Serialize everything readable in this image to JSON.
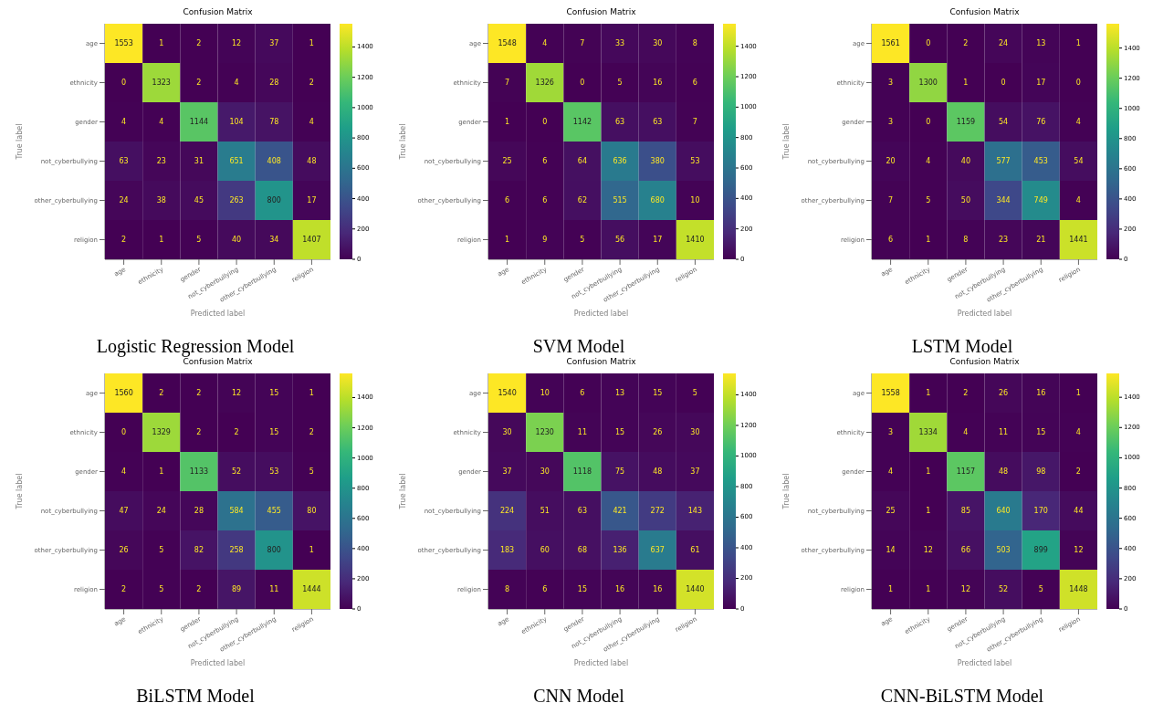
{
  "chart_data": [
    {
      "type": "heatmap",
      "title": "Confusion Matrix",
      "subtitle": "Logistic Regression Model",
      "xlabel": "Predicted label",
      "ylabel": "True label",
      "categories": [
        "age",
        "ethnicity",
        "gender",
        "not_cyberbullying",
        "other_cyberbullying",
        "religion"
      ],
      "y_categories": [
        "age",
        "ethnicity",
        "gender",
        "not_cyberbullying",
        "other_cyberbullying",
        "religion"
      ],
      "cells": [
        [
          1553,
          1,
          2,
          12,
          37,
          1
        ],
        [
          0,
          1323,
          2,
          4,
          28,
          2
        ],
        [
          4,
          4,
          1144,
          104,
          78,
          4
        ],
        [
          63,
          23,
          31,
          651,
          408,
          48
        ],
        [
          24,
          38,
          45,
          263,
          800,
          17
        ],
        [
          2,
          1,
          5,
          40,
          34,
          1407
        ]
      ],
      "clim": [
        0,
        1553
      ],
      "cticks": [
        0,
        200,
        400,
        600,
        800,
        1000,
        1200,
        1400
      ],
      "data_labels": true
    },
    {
      "type": "heatmap",
      "title": "Confusion Matrix",
      "subtitle": "SVM Model",
      "xlabel": "Predicted label",
      "ylabel": "True label",
      "categories": [
        "age",
        "ethnicity",
        "gender",
        "not_cyberbullying",
        "other_cyberbullying",
        "religion"
      ],
      "y_categories": [
        "age",
        "ethnicity",
        "gender",
        "not_cyberbullying",
        "other_cyberbullying",
        "religion"
      ],
      "cells": [
        [
          1548,
          4,
          7,
          33,
          30,
          8
        ],
        [
          7,
          1326,
          0,
          5,
          16,
          6
        ],
        [
          1,
          0,
          1142,
          63,
          63,
          7
        ],
        [
          25,
          6,
          64,
          636,
          380,
          53
        ],
        [
          6,
          6,
          62,
          515,
          680,
          10
        ],
        [
          1,
          9,
          5,
          56,
          17,
          1410
        ]
      ],
      "clim": [
        0,
        1548
      ],
      "cticks": [
        0,
        200,
        400,
        600,
        800,
        1000,
        1200,
        1400
      ],
      "data_labels": true
    },
    {
      "type": "heatmap",
      "title": "Confusion Matrix",
      "subtitle": "LSTM Model",
      "xlabel": "Predicted label",
      "ylabel": "True label",
      "categories": [
        "age",
        "ethnicity",
        "gender",
        "not_cyberbullying",
        "other_cyberbullying",
        "religion"
      ],
      "y_categories": [
        "age",
        "ethnicity",
        "gender",
        "not_cyberbullying",
        "other_cyberbullying",
        "religion"
      ],
      "cells": [
        [
          1561,
          0,
          2,
          24,
          13,
          1
        ],
        [
          3,
          1300,
          1,
          0,
          17,
          0
        ],
        [
          3,
          0,
          1159,
          54,
          76,
          4
        ],
        [
          20,
          4,
          40,
          577,
          453,
          54
        ],
        [
          7,
          5,
          50,
          344,
          749,
          4
        ],
        [
          6,
          1,
          8,
          23,
          21,
          1441
        ]
      ],
      "clim": [
        0,
        1561
      ],
      "cticks": [
        0,
        200,
        400,
        600,
        800,
        1000,
        1200,
        1400
      ],
      "data_labels": true
    },
    {
      "type": "heatmap",
      "title": "Confusion Matrix",
      "subtitle": "BiLSTM Model",
      "xlabel": "Predicted label",
      "ylabel": "True label",
      "categories": [
        "age",
        "ethnicity",
        "gender",
        "not_cyberbullying",
        "other_cyberbullying",
        "religion"
      ],
      "y_categories": [
        "age",
        "ethnicity",
        "gender",
        "not_cyberbullying",
        "other_cyberbullying",
        "religion"
      ],
      "cells": [
        [
          1560,
          2,
          2,
          12,
          15,
          1
        ],
        [
          0,
          1329,
          2,
          2,
          15,
          2
        ],
        [
          4,
          1,
          1133,
          52,
          53,
          5
        ],
        [
          47,
          24,
          28,
          584,
          455,
          80
        ],
        [
          26,
          5,
          82,
          258,
          800,
          1
        ],
        [
          2,
          5,
          2,
          89,
          11,
          1444
        ]
      ],
      "clim": [
        0,
        1560
      ],
      "cticks": [
        0,
        200,
        400,
        600,
        800,
        1000,
        1200,
        1400
      ],
      "data_labels": true
    },
    {
      "type": "heatmap",
      "title": "Confusion Matrix",
      "subtitle": "CNN Model",
      "xlabel": "Predicted label",
      "ylabel": "True label",
      "categories": [
        "age",
        "ethnicity",
        "gender",
        "not_cyberbullying",
        "other_cyberbullying",
        "religion"
      ],
      "y_categories": [
        "age",
        "ethnicity",
        "gender",
        "not_cyberbullying",
        "other_cyberbullying",
        "religion"
      ],
      "cells": [
        [
          1540,
          10,
          6,
          13,
          15,
          5
        ],
        [
          30,
          1230,
          11,
          15,
          26,
          30
        ],
        [
          37,
          30,
          1118,
          75,
          48,
          37
        ],
        [
          224,
          51,
          63,
          421,
          272,
          143
        ],
        [
          183,
          60,
          68,
          136,
          637,
          61
        ],
        [
          8,
          6,
          15,
          16,
          16,
          1440
        ]
      ],
      "clim": [
        0,
        1540
      ],
      "cticks": [
        0,
        200,
        400,
        600,
        800,
        1000,
        1200,
        1400
      ],
      "data_labels": true
    },
    {
      "type": "heatmap",
      "title": "Confusion Matrix",
      "subtitle": "CNN-BiLSTM Model",
      "xlabel": "Predicted label",
      "ylabel": "True label",
      "categories": [
        "age",
        "ethnicity",
        "gender",
        "not_cyberbullying",
        "other_cyberbullying",
        "religion"
      ],
      "y_categories": [
        "age",
        "ethnicity",
        "gender",
        "not_cyberbullying",
        "other_cyberbullying",
        "religion"
      ],
      "cells": [
        [
          1558,
          1,
          2,
          26,
          16,
          1
        ],
        [
          3,
          1334,
          4,
          11,
          15,
          4
        ],
        [
          4,
          1,
          1157,
          48,
          98,
          2
        ],
        [
          25,
          1,
          85,
          640,
          170,
          44
        ],
        [
          14,
          12,
          66,
          503,
          899,
          12
        ],
        [
          1,
          1,
          12,
          52,
          5,
          1448
        ]
      ],
      "clim": [
        0,
        1558
      ],
      "cticks": [
        0,
        200,
        400,
        600,
        800,
        1000,
        1200,
        1400
      ],
      "data_labels": true
    }
  ]
}
